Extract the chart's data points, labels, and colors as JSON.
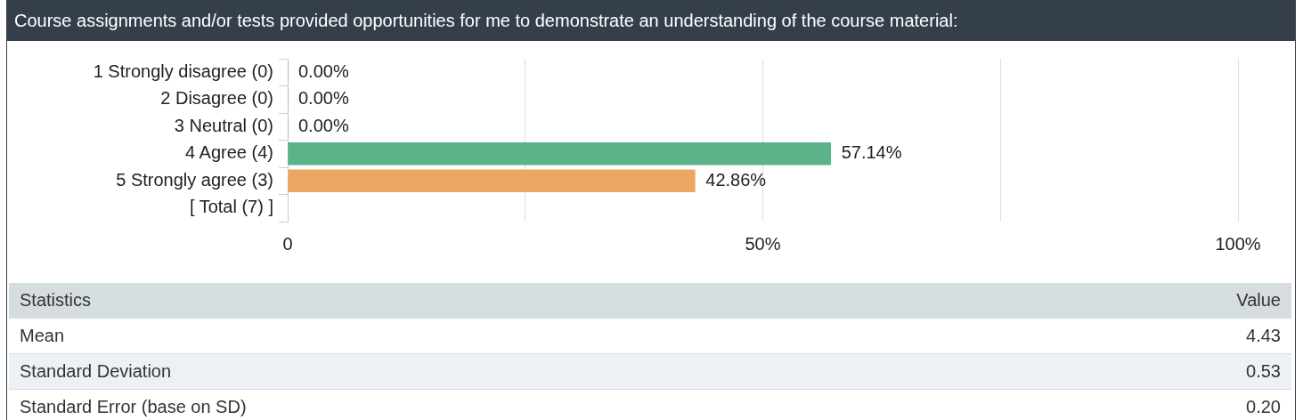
{
  "chart_data": {
    "type": "bar",
    "orientation": "horizontal",
    "title": "Course assignments and/or tests provided opportunities for me to demonstrate an understanding of the course material:",
    "categories": [
      "1 Strongly disagree (0)",
      "2 Disagree (0)",
      "3 Neutral (0)",
      "4 Agree (4)",
      "5 Strongly agree (3)",
      "[ Total (7) ]"
    ],
    "values": [
      0,
      0,
      0,
      57.14,
      42.86,
      null
    ],
    "colors": [
      "#5db389",
      "#5db389",
      "#5db389",
      "#5db389",
      "#eba664",
      "#eba664"
    ],
    "value_labels": [
      "0.00%",
      "0.00%",
      "0.00%",
      "57.14%",
      "42.86%",
      null
    ],
    "xlim": [
      0,
      100
    ],
    "xticks": [
      0,
      {
        "value": 25,
        "label": null
      },
      {
        "value": 50,
        "label": "50%"
      },
      {
        "value": 75,
        "label": null
      },
      {
        "value": 100,
        "label": "100%"
      }
    ],
    "grid": "x",
    "annotations": [
      "Statistics",
      "Value",
      "Mean",
      "4.43",
      "Standard Deviation",
      "0.53",
      "Standard Error (base on SD)",
      "0.20"
    ]
  }
}
